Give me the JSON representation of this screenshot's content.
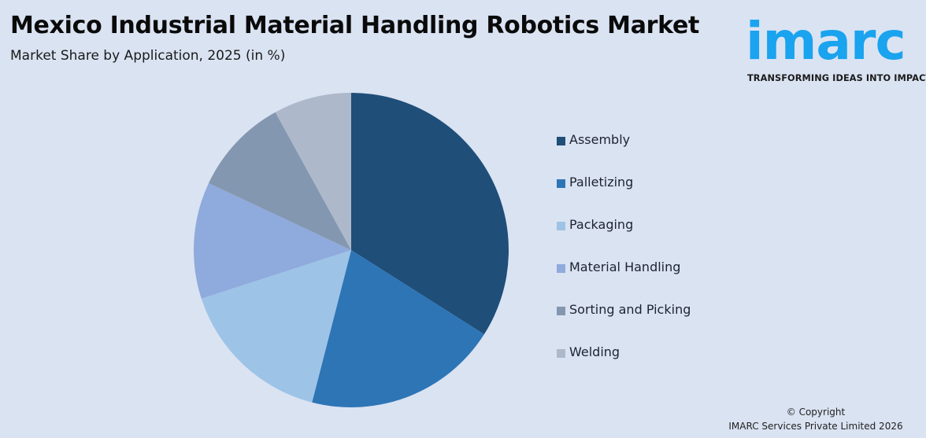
{
  "header": {
    "title": "Mexico Industrial Material Handling Robotics Market",
    "subtitle": "Market Share by Application, 2025 (in %)"
  },
  "logo": {
    "wordmark": "imarc",
    "tagline": "TRANSFORMING IDEAS INTO IMPACT",
    "color": "#1aa3ee"
  },
  "footer": {
    "copyright_line1": "© Copyright",
    "copyright_line2": "IMARC Services Private Limited 2026"
  },
  "chart_data": {
    "type": "pie",
    "title": "Mexico Industrial Material Handling Robotics Market",
    "subtitle": "Market Share by Application, 2025 (in %)",
    "categories": [
      "Assembly",
      "Palletizing",
      "Packaging",
      "Material Handling",
      "Sorting and Picking",
      "Welding"
    ],
    "values": [
      34,
      20,
      16,
      12,
      10,
      8
    ],
    "colors": [
      "#1f4e79",
      "#2e75b6",
      "#9dc3e6",
      "#8faadc",
      "#8497b0",
      "#adb9ca"
    ],
    "start_angle": "12 o'clock, clockwise",
    "data_labels": false,
    "legend_position": "right"
  }
}
